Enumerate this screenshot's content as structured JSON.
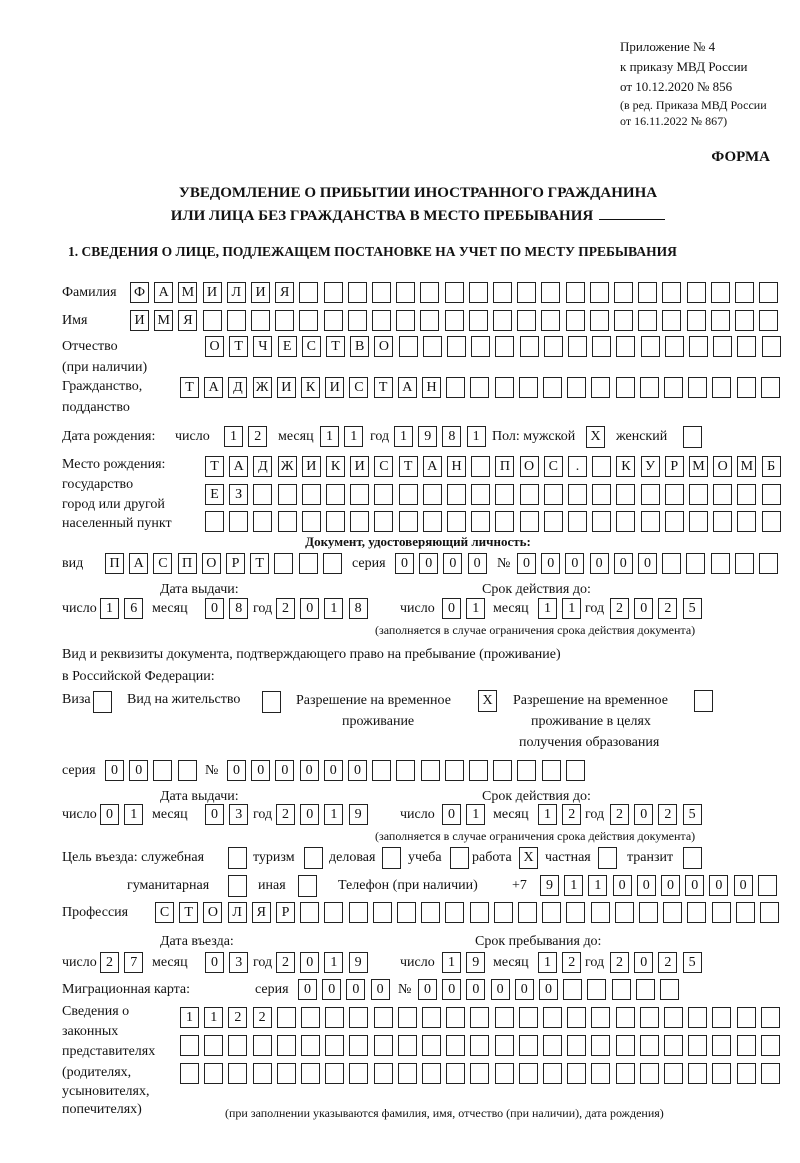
{
  "header": {
    "line1": "Приложение № 4",
    "line2": "к приказу МВД России",
    "line3": "от 10.12.2020 № 856",
    "line4": "(в ред. Приказа МВД России",
    "line5": "от 16.11.2022 № 867)",
    "form_label": "ФОРМА",
    "title1": "УВЕДОМЛЕНИЕ О ПРИБЫТИИ ИНОСТРАННОГО ГРАЖДАНИНА",
    "title2": "ИЛИ ЛИЦА БЕЗ ГРАЖДАНСТВА В МЕСТО ПРЕБЫВАНИЯ",
    "section1": "1. СВЕДЕНИЯ О ЛИЦЕ, ПОДЛЕЖАЩЕМ ПОСТАНОВКЕ НА УЧЕТ ПО МЕСТУ ПРЕБЫВАНИЯ"
  },
  "labels": {
    "surname": "Фамилия",
    "name": "Имя",
    "patronymic": "Отчество",
    "patronymic_note": "(при наличии)",
    "citizenship": "Гражданство,",
    "citizenship2": "подданство",
    "birth_date": "Дата рождения:",
    "day": "число",
    "month": "месяц",
    "year": "год",
    "sex_male": "Пол: мужской",
    "sex_female": "женский",
    "birthplace1": "Место рождения:",
    "birthplace2": "государство",
    "birthplace3": "город или другой",
    "birthplace4": "населенный пункт",
    "id_doc": "Документ, удостоверяющий личность:",
    "kind": "вид",
    "series": "серия",
    "number": "№",
    "issue_date": "Дата выдачи:",
    "valid_until": "Срок действия до:",
    "validity_note": "(заполняется в случае ограничения срока действия документа)",
    "right_doc1": "Вид и реквизиты документа, подтверждающего право на пребывание (проживание)",
    "right_doc2": "в Российской Федерации:",
    "visa": "Виза",
    "residence": "Вид на жительство",
    "trp1": "Разрешение на временное",
    "trp2": "проживание",
    "trp_edu1": "Разрешение на временное",
    "trp_edu2": "проживание в целях",
    "trp_edu3": "получения образования",
    "purpose": "Цель въезда: служебная",
    "tourism": "туризм",
    "business": "деловая",
    "study": "учеба",
    "work": "работа",
    "private": "частная",
    "transit": "транзит",
    "humanitarian": "гуманитарная",
    "other": "иная",
    "phone": "Телефон (при наличии)",
    "phone_prefix": "+7",
    "profession": "Профессия",
    "entry_date": "Дата въезда:",
    "stay_until": "Срок пребывания до:",
    "migration_card": "Миграционная карта:",
    "reps1": "Сведения о",
    "reps2": "законных",
    "reps3": "представителях",
    "reps4": "(родителях,",
    "reps5": "усыновителях,",
    "reps6": "попечителях)",
    "reps_note": "(при заполнении указываются фамилия, имя, отчество (при наличии), дата рождения)"
  },
  "values": {
    "surname": "ФАМИЛИЯ",
    "name": "ИМЯ",
    "patronymic": "ОТЧЕСТВО",
    "citizenship": "ТАДЖИКИСТАН",
    "birth_day": "12",
    "birth_month": "11",
    "birth_year": "1981",
    "sex_male": "X",
    "sex_female": "",
    "birthplace_row1": "ТАДЖИКИСТАН ПОС. КУРМОМБ",
    "birthplace_row2": "ЕЗ",
    "birthplace_row3": "",
    "doc_kind": "ПАСПОРТ",
    "doc_series": "0000",
    "doc_number": "000000",
    "doc_issue_day": "16",
    "doc_issue_month": "08",
    "doc_issue_year": "2018",
    "doc_valid_day": "01",
    "doc_valid_month": "11",
    "doc_valid_year": "2025",
    "visa": "",
    "residence": "",
    "trp": "X",
    "trp_edu": "",
    "right_series": "00",
    "right_number": "000000",
    "right_issue_day": "01",
    "right_issue_month": "03",
    "right_issue_year": "2019",
    "right_valid_day": "01",
    "right_valid_month": "12",
    "right_valid_year": "2025",
    "purpose_official": "",
    "purpose_tourism": "",
    "purpose_business": "",
    "purpose_study": "",
    "purpose_work": "X",
    "purpose_private": "",
    "purpose_transit": "",
    "purpose_humanitarian": "",
    "purpose_other": "",
    "phone": "911000000",
    "profession": "СТОЛЯР",
    "entry_day": "27",
    "entry_month": "03",
    "entry_year": "2019",
    "stay_day": "19",
    "stay_month": "12",
    "stay_year": "2025",
    "mc_series": "0000",
    "mc_number": "000000",
    "reps_row1": "1122",
    "reps_row2": "",
    "reps_row3": ""
  }
}
